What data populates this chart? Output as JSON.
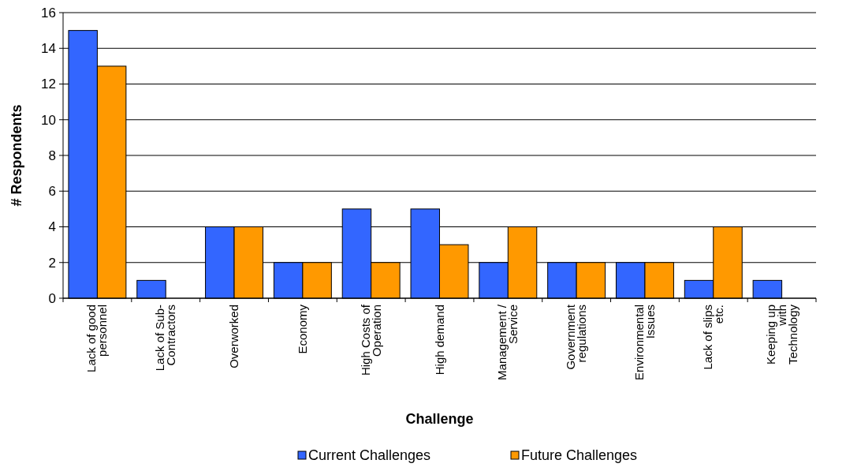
{
  "chart_data": {
    "type": "bar",
    "xlabel": "Challenge",
    "ylabel": "# Respondents",
    "categories": [
      "Lack of good personnel",
      "Lack of Sub-Contractors",
      "Overworked",
      "Economy",
      "High Costs of Operation",
      "High demand",
      "Management / Service",
      "Government regulations",
      "Environmental Issues",
      "Lack of slips etc.",
      "Keeping up with Technology"
    ],
    "series": [
      {
        "name": "Current Challenges",
        "color": "#3366ff",
        "values": [
          15,
          1,
          4,
          2,
          5,
          5,
          2,
          2,
          2,
          1,
          1
        ]
      },
      {
        "name": "Future Challenges",
        "color": "#ff9900",
        "values": [
          13,
          0,
          4,
          2,
          2,
          3,
          4,
          2,
          2,
          4,
          0
        ]
      }
    ],
    "ylim": [
      0,
      16
    ],
    "yticks": [
      0,
      2,
      4,
      6,
      8,
      10,
      12,
      14,
      16
    ],
    "grid": "y",
    "legend": "bottom"
  }
}
